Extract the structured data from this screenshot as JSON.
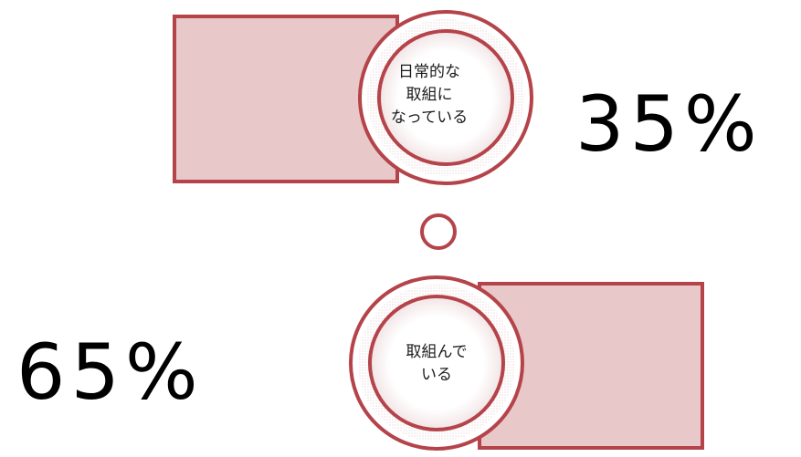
{
  "colors": {
    "outline": "#b5434a",
    "fill": "#e8c8c9",
    "background": "#ffffff",
    "text": "#000000"
  },
  "items": [
    {
      "percent": "35%",
      "label_lines": [
        "日常的な",
        "取組に",
        "なっている"
      ]
    },
    {
      "percent": "65%",
      "label_lines": [
        "取組んで",
        "いる"
      ]
    }
  ]
}
